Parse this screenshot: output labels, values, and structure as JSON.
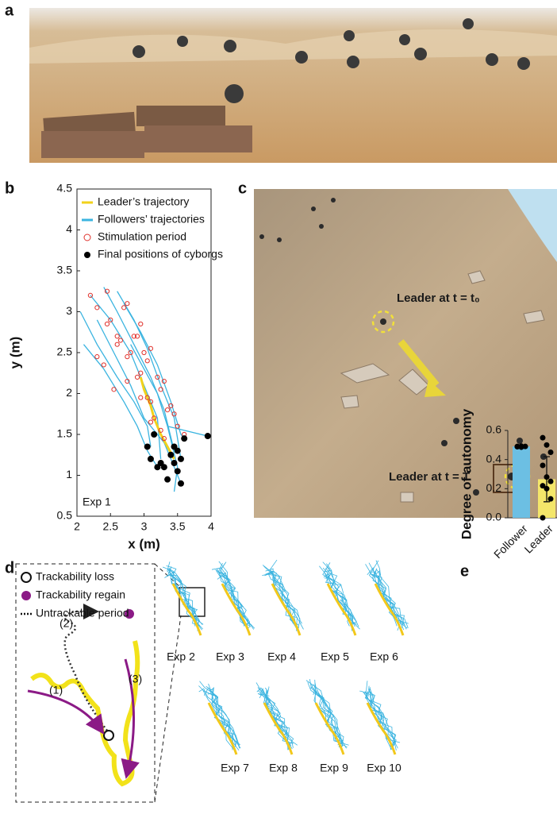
{
  "panel_labels": [
    "a",
    "b",
    "c",
    "d",
    "e"
  ],
  "photo_c": {
    "labels": [
      "Leader at t = t₀",
      "Leader at t = T"
    ]
  },
  "diagram_d": {
    "legend": [
      "Trackability loss",
      "Trackability regain",
      "Untrackable period"
    ],
    "phases": [
      "(1)",
      "(2)",
      "(3)"
    ],
    "experiments": [
      "Exp 2",
      "Exp 3",
      "Exp 4",
      "Exp 5",
      "Exp 6",
      "Exp 7",
      "Exp 8",
      "Exp 9",
      "Exp 10"
    ]
  },
  "chart_data": [
    {
      "type": "trajectory",
      "xlabel": "x (m)",
      "ylabel": "y (m)",
      "annotation": "Exp 1",
      "xlim": [
        2,
        4
      ],
      "xticks": [
        2,
        2.5,
        3,
        3.5,
        4
      ],
      "ylim": [
        0.5,
        4.5
      ],
      "yticks": [
        0.5,
        1,
        1.5,
        2,
        2.5,
        3,
        3.5,
        4,
        4.5
      ],
      "series": [
        {
          "name": "Followers’ trajectories",
          "kind": "line",
          "color": "#3bb4e0",
          "x": [
            2.05,
            2.3,
            2.6,
            2.85,
            3.05,
            3.1,
            null,
            2.2,
            2.5,
            2.8,
            3.0,
            3.2,
            3.25,
            null,
            2.4,
            2.6,
            2.85,
            3.1,
            3.3,
            3.45,
            null,
            2.6,
            2.85,
            3.05,
            3.25,
            3.45,
            3.55,
            null,
            2.7,
            2.95,
            3.2,
            3.4,
            3.55,
            3.6,
            null,
            2.3,
            2.55,
            2.8,
            3.0,
            3.3,
            3.55,
            null,
            2.8,
            3.0,
            3.2,
            3.35,
            3.5,
            3.45,
            null,
            3.35,
            3.6,
            3.95,
            null,
            2.1,
            2.4,
            2.7,
            2.9,
            3.05,
            3.2
          ],
          "y": [
            3.0,
            2.6,
            2.2,
            1.9,
            1.6,
            1.35,
            null,
            3.2,
            2.9,
            2.5,
            2.1,
            1.7,
            1.2,
            null,
            3.3,
            3.0,
            2.6,
            2.2,
            1.8,
            1.3,
            null,
            3.25,
            2.9,
            2.55,
            2.1,
            1.7,
            1.2,
            null,
            3.1,
            2.75,
            2.35,
            1.9,
            1.5,
            1.45,
            null,
            2.9,
            2.5,
            2.1,
            1.7,
            1.4,
            0.9,
            null,
            2.6,
            2.3,
            2.0,
            1.6,
            1.1,
            0.8,
            null,
            1.6,
            1.55,
            1.48,
            null,
            2.6,
            2.3,
            1.9,
            1.6,
            1.3,
            1.1
          ]
        },
        {
          "name": "Leader’s trajectory",
          "kind": "line",
          "color": "#f2d21b",
          "x": [
            2.95,
            3.0,
            3.1,
            3.15,
            3.25,
            3.35,
            3.45
          ],
          "y": [
            2.2,
            2.05,
            1.85,
            1.7,
            1.5,
            1.35,
            1.2
          ]
        },
        {
          "name": "Stimulation period",
          "kind": "ring",
          "color": "#e0312b",
          "x": [
            2.2,
            2.3,
            2.45,
            2.6,
            2.75,
            2.9,
            3.05,
            3.15,
            2.5,
            2.65,
            2.8,
            2.95,
            3.1,
            3.25,
            2.45,
            2.7,
            2.9,
            3.0,
            3.2,
            3.35,
            2.75,
            2.95,
            3.1,
            3.3,
            3.4,
            3.5,
            2.85,
            3.05,
            3.25,
            3.45,
            2.4,
            2.6,
            2.75,
            2.95,
            3.1,
            3.3,
            3.4,
            3.6,
            2.3,
            2.55
          ],
          "y": [
            3.2,
            3.05,
            2.85,
            2.7,
            2.45,
            2.2,
            1.95,
            1.7,
            2.9,
            2.65,
            2.5,
            2.25,
            1.9,
            1.55,
            3.25,
            3.05,
            2.7,
            2.5,
            2.2,
            1.8,
            3.1,
            2.85,
            2.55,
            2.15,
            1.85,
            1.6,
            2.7,
            2.4,
            2.05,
            1.75,
            2.35,
            2.6,
            2.15,
            1.95,
            1.65,
            1.45,
            1.25,
            1.5,
            2.45,
            2.05
          ]
        },
        {
          "name": "Final positions of cyborgs",
          "kind": "dot",
          "color": "#000000",
          "x": [
            3.05,
            3.1,
            3.15,
            3.2,
            3.25,
            3.3,
            3.35,
            3.4,
            3.45,
            3.45,
            3.5,
            3.5,
            3.55,
            3.55,
            3.6,
            3.95
          ],
          "y": [
            1.35,
            1.2,
            1.5,
            1.1,
            1.15,
            1.1,
            0.95,
            1.25,
            1.35,
            1.15,
            1.3,
            1.05,
            0.9,
            1.2,
            1.45,
            1.48
          ]
        }
      ]
    },
    {
      "type": "bar",
      "ylabel": "Degree of autonomy",
      "categories": [
        "Follower",
        "Leader"
      ],
      "values": [
        0.49,
        0.265
      ],
      "errors": [
        0.005,
        0.155
      ],
      "colors": [
        "#6cbfe3",
        "#f4e66a"
      ],
      "points": [
        [
          0.49,
          0.485,
          0.49,
          0.488,
          0.492
        ],
        [
          0.55,
          0.5,
          0.45,
          0.36,
          0.28,
          0.25,
          0.22,
          0.2,
          0.13,
          0.0
        ]
      ],
      "ylim": [
        0,
        0.6
      ],
      "yticks": [
        {
          "value": 0,
          "label": "0.0"
        },
        0.2,
        0.4,
        0.6
      ]
    }
  ]
}
